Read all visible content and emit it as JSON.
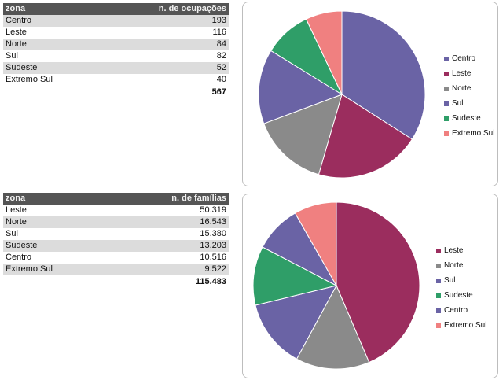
{
  "colors": {
    "Centro": "#6a63a5",
    "Leste": "#9b2d5e",
    "Norte": "#8a8a8a",
    "Sul": "#6a63a5",
    "Sudeste": "#2f9e68",
    "Extremo Sul": "#f08080"
  },
  "table1": {
    "col1": "zona",
    "col2": "n. de ocupações",
    "rows": [
      {
        "zona": "Centro",
        "value": "193"
      },
      {
        "zona": "Leste",
        "value": "116"
      },
      {
        "zona": "Norte",
        "value": "84"
      },
      {
        "zona": "Sul",
        "value": "82"
      },
      {
        "zona": "Sudeste",
        "value": "52"
      },
      {
        "zona": "Extremo Sul",
        "value": "40"
      }
    ],
    "total": "567"
  },
  "table2": {
    "col1": "zona",
    "col2": "n. de famílias",
    "rows": [
      {
        "zona": "Leste",
        "value": "50.319"
      },
      {
        "zona": "Norte",
        "value": "16.543"
      },
      {
        "zona": "Sul",
        "value": "15.380"
      },
      {
        "zona": "Sudeste",
        "value": "13.203"
      },
      {
        "zona": "Centro",
        "value": "10.516"
      },
      {
        "zona": "Extremo Sul",
        "value": "9.522"
      }
    ],
    "total": "115.483"
  },
  "chart_data": [
    {
      "type": "pie",
      "title": "",
      "legend_position": "right",
      "categories": [
        "Centro",
        "Leste",
        "Norte",
        "Sul",
        "Sudeste",
        "Extremo Sul"
      ],
      "values": [
        193,
        116,
        84,
        82,
        52,
        40
      ]
    },
    {
      "type": "pie",
      "title": "",
      "legend_position": "right",
      "categories": [
        "Leste",
        "Norte",
        "Sul",
        "Sudeste",
        "Centro",
        "Extremo Sul"
      ],
      "values": [
        50319,
        16543,
        15380,
        13203,
        10516,
        9522
      ]
    }
  ]
}
